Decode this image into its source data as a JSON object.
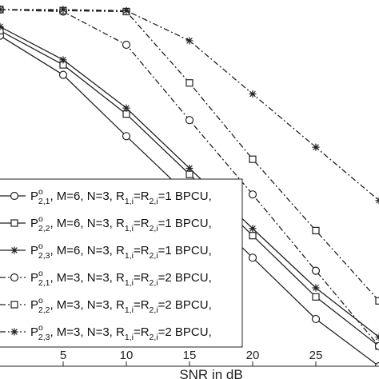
{
  "chart_data": {
    "type": "line",
    "xlabel": "SNR in dB",
    "ylabel": "",
    "title": "",
    "log_y": true,
    "grid": false,
    "legend_position": "bottom-left",
    "x_ticks": [
      5,
      10,
      15,
      20,
      25
    ],
    "xlim": [
      0,
      30
    ],
    "ylim_log10": [
      -3.55,
      0
    ],
    "series": [
      {
        "name": "P^o_{2,1}, M=6, N=3, R_{1,i}=R_{2,i}=1 BPCU,",
        "legend": {
          "main": "P",
          "sup": "o",
          "sub": "2,1",
          "text": ", M=6, N=3, R",
          "sub2": "1,i",
          "mid": "=R",
          "sub3": "2,i",
          "tail": "=1 BPCU,"
        },
        "marker": "circle",
        "dash": "solid",
        "x": [
          0,
          5,
          10,
          15,
          20,
          25,
          30
        ],
        "log10_y": [
          -0.26,
          -0.65,
          -1.26,
          -1.86,
          -2.47,
          -3.08,
          -3.55
        ]
      },
      {
        "name": "P^o_{2,2}, M=6, N=3, R_{1,i}=R_{2,i}=1 BPCU,",
        "legend": {
          "main": "P",
          "sup": "o",
          "sub": "2,2",
          "text": ", M=6, N=3, R",
          "sub2": "1,i",
          "mid": "=R",
          "sub3": "2,i",
          "tail": "=1 BPCU,"
        },
        "marker": "square",
        "dash": "solid",
        "x": [
          0,
          5,
          10,
          15,
          20,
          25,
          30
        ],
        "log10_y": [
          -0.21,
          -0.55,
          -1.04,
          -1.64,
          -2.25,
          -2.86,
          -3.35
        ]
      },
      {
        "name": "P^o_{2,3}, M=6, N=3, R_{1,i}=R_{2,i}=1 BPCU,",
        "legend": {
          "main": "P",
          "sup": "o",
          "sub": "2,3",
          "text": ", M=6, N=3, R",
          "sub2": "1,i",
          "mid": "=R",
          "sub3": "2,i",
          "tail": "=1 BPCU,"
        },
        "marker": "star",
        "dash": "solid",
        "x": [
          0,
          5,
          10,
          15,
          20,
          25,
          30
        ],
        "log10_y": [
          -0.17,
          -0.5,
          -0.98,
          -1.58,
          -2.18,
          -2.77,
          -3.26
        ]
      },
      {
        "name": "P^o_{2,1}, M=3, N=3, R_{1,i}=R_{2,i}=2 BPCU,",
        "legend": {
          "main": "P",
          "sup": "o",
          "sub": "2,1",
          "text": ", M=3, N=3, R",
          "sub2": "1,i",
          "mid": "=R",
          "sub3": "2,i",
          "tail": "=2 BPCU,"
        },
        "marker": "circle",
        "dash": "dashdot",
        "x": [
          0,
          5,
          10,
          15,
          20,
          25,
          30
        ],
        "log10_y": [
          0,
          -0.02,
          -0.35,
          -1.1,
          -1.84,
          -2.6,
          -3.35
        ]
      },
      {
        "name": "P^o_{2,2}, M=3, N=3, R_{1,i}=R_{2,i}=2 BPCU,",
        "legend": {
          "main": "P",
          "sup": "o",
          "sub": "2,2",
          "text": ", M=3, N=3, R",
          "sub2": "1,i",
          "mid": "=R",
          "sub3": "2,i",
          "tail": "=2 BPCU,"
        },
        "marker": "square",
        "dash": "dashdot",
        "x": [
          0,
          5,
          10,
          15,
          20,
          25,
          30
        ],
        "log10_y": [
          0,
          -0.01,
          -0.02,
          -0.73,
          -1.49,
          -2.2,
          -2.9
        ]
      },
      {
        "name": "P^o_{2,3}, M=3, N=3, R_{1,i}=R_{2,i}=2 BPCU,",
        "legend": {
          "main": "P",
          "sup": "o",
          "sub": "2,3",
          "text": ", M=3, N=3, R",
          "sub2": "1,i",
          "mid": "=R",
          "sub3": "2,i",
          "tail": "=2 BPCU,"
        },
        "marker": "star",
        "dash": "dashdot",
        "x": [
          0,
          5,
          10,
          15,
          20,
          25,
          30
        ],
        "log10_y": [
          0,
          0,
          -0.01,
          -0.31,
          -0.84,
          -1.37,
          -1.9
        ]
      }
    ]
  }
}
